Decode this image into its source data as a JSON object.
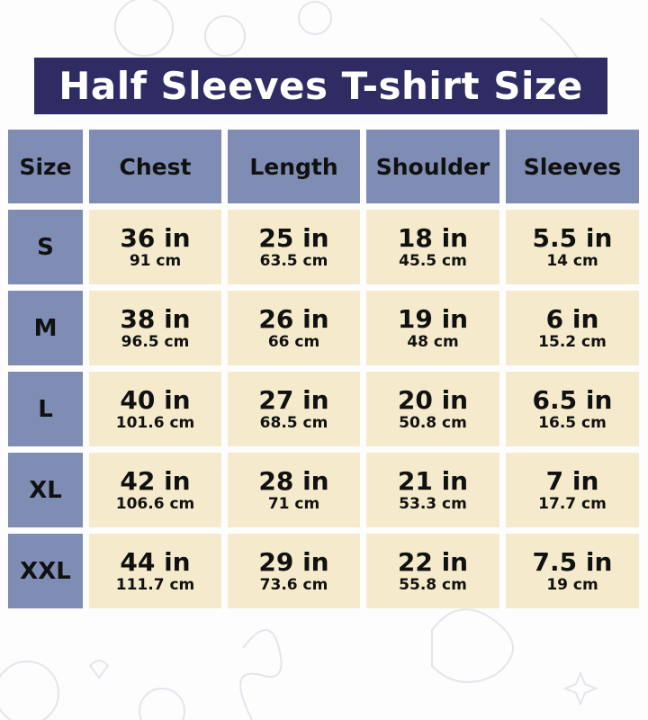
{
  "title": "Half Sleeves T-shirt Size",
  "colors": {
    "title_bg": "#2e2c63",
    "header_bg": "#7f8db4",
    "cell_bg": "#f5ebcc"
  },
  "headers": [
    "Size",
    "Chest",
    "Length",
    "Shoulder",
    "Sleeves"
  ],
  "rows": [
    {
      "size": "S",
      "cells": [
        {
          "in": "36 in",
          "cm": "91 cm"
        },
        {
          "in": "25 in",
          "cm": "63.5 cm"
        },
        {
          "in": "18 in",
          "cm": "45.5 cm"
        },
        {
          "in": "5.5 in",
          "cm": "14 cm"
        }
      ]
    },
    {
      "size": "M",
      "cells": [
        {
          "in": "38 in",
          "cm": "96.5 cm"
        },
        {
          "in": "26 in",
          "cm": "66 cm"
        },
        {
          "in": "19 in",
          "cm": "48 cm"
        },
        {
          "in": "6 in",
          "cm": "15.2 cm"
        }
      ]
    },
    {
      "size": "L",
      "cells": [
        {
          "in": "40 in",
          "cm": "101.6 cm"
        },
        {
          "in": "27 in",
          "cm": "68.5 cm"
        },
        {
          "in": "20 in",
          "cm": "50.8 cm"
        },
        {
          "in": "6.5 in",
          "cm": "16.5 cm"
        }
      ]
    },
    {
      "size": "XL",
      "cells": [
        {
          "in": "42 in",
          "cm": "106.6 cm"
        },
        {
          "in": "28 in",
          "cm": "71 cm"
        },
        {
          "in": "21 in",
          "cm": "53.3 cm"
        },
        {
          "in": "7 in",
          "cm": "17.7 cm"
        }
      ]
    },
    {
      "size": "XXL",
      "cells": [
        {
          "in": "44 in",
          "cm": "111.7 cm"
        },
        {
          "in": "29 in",
          "cm": "73.6 cm"
        },
        {
          "in": "22 in",
          "cm": "55.8 cm"
        },
        {
          "in": "7.5 in",
          "cm": "19 cm"
        }
      ]
    }
  ]
}
